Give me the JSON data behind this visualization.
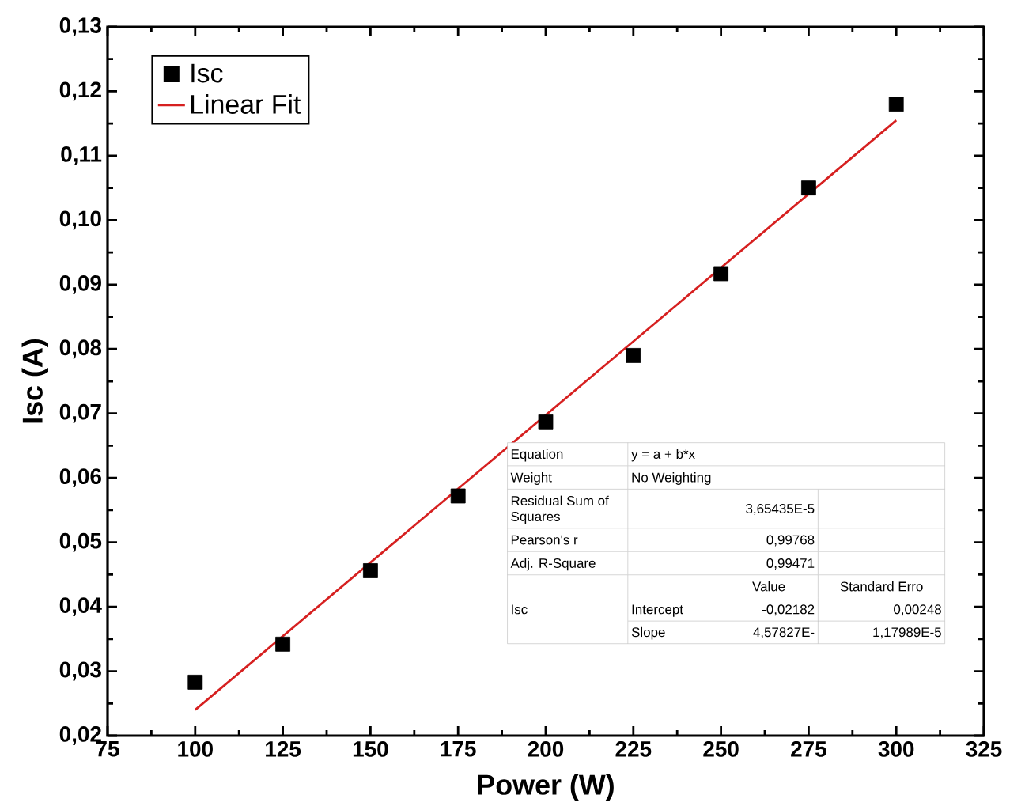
{
  "chart_data": {
    "type": "scatter",
    "xlabel": "Power (W)",
    "ylabel": "Isc (A)",
    "x": [
      100,
      125,
      150,
      175,
      200,
      225,
      250,
      275,
      300
    ],
    "series": [
      {
        "name": "Isc",
        "color": "#000000",
        "marker": "square",
        "values": [
          0.0283,
          0.0342,
          0.0456,
          0.0572,
          0.0687,
          0.079,
          0.0917,
          0.105,
          0.118
        ]
      },
      {
        "name": "Linear Fit",
        "type": "line",
        "marker": "none",
        "color": "#d62020",
        "x": [
          100,
          300
        ],
        "values": [
          0.024,
          0.1155
        ]
      }
    ],
    "xlim": [
      75,
      325
    ],
    "xticks": [
      75,
      100,
      125,
      150,
      175,
      200,
      225,
      250,
      275,
      300,
      325
    ],
    "ylim": [
      0.02,
      0.13
    ],
    "yticks": [
      {
        "value": 0.02,
        "label": "0,02"
      },
      {
        "value": 0.03,
        "label": "0,03"
      },
      {
        "value": 0.04,
        "label": "0,04"
      },
      {
        "value": 0.05,
        "label": "0,05"
      },
      {
        "value": 0.06,
        "label": "0,06"
      },
      {
        "value": 0.07,
        "label": "0,07"
      },
      {
        "value": 0.08,
        "label": "0,08"
      },
      {
        "value": 0.09,
        "label": "0,09"
      },
      {
        "value": 0.1,
        "label": "0,10"
      },
      {
        "value": 0.11,
        "label": "0,11"
      },
      {
        "value": 0.12,
        "label": "0,12"
      },
      {
        "value": 0.13,
        "label": "0,13"
      }
    ],
    "legend": "top left",
    "grid": false,
    "annotations": [
      "Equation",
      "y = a + b*x",
      "Weight",
      "No Weighting",
      "Residual Sum of Squares",
      "3,65435E-5",
      "Pearson's r",
      "0,99768",
      "Adj. R-Square",
      "0,99471",
      "Value",
      "Standard Erro",
      "Isc",
      "Intercept",
      "-0,02182",
      "0,00248",
      "Slope",
      "4,57827E-",
      "1,17989E-5"
    ]
  }
}
